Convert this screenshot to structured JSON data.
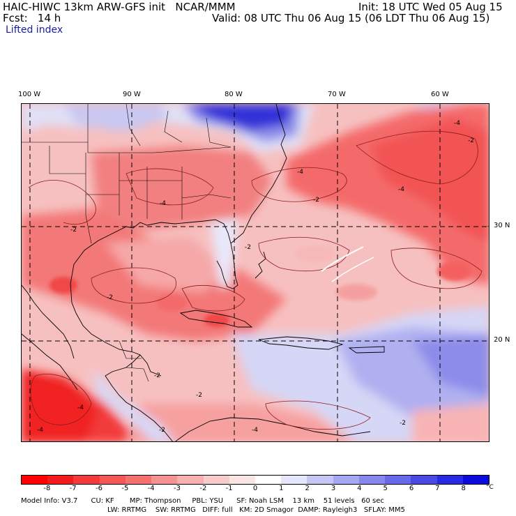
{
  "header": {
    "model_line": "HAIC-HIWC 13km ARW-GFS init   NCAR/MMM",
    "init_line": "Init: 18 UTC Wed 05 Aug 15",
    "fcst_line": "Fcst:   14 h",
    "valid_line": "Valid: 08 UTC Thu 06 Aug 15 (06 LDT Thu 06 Aug 15)",
    "field_name": "Lifted index"
  },
  "axes": {
    "lon_labels": [
      "100 W",
      "90 W",
      "80 W",
      "70 W",
      "60 W"
    ],
    "lat_labels": [
      "30 N",
      "20 N"
    ]
  },
  "contour_labels": [
    "-2",
    "-4",
    "-4",
    "-2",
    "-4",
    "-2",
    "-4",
    "-2",
    "-2",
    "-2",
    "-2",
    "-4",
    "-4",
    "-2",
    "-4",
    "-2",
    "-2"
  ],
  "colorbar": {
    "colors": [
      "#ff0000",
      "#f31c1c",
      "#f43a3a",
      "#f55757",
      "#f57070",
      "#f69292",
      "#f8afaf",
      "#f9cccc",
      "#fbe4e4",
      "#ffffff",
      "#e6e6fb",
      "#c6c6f6",
      "#a7a7f2",
      "#8787ee",
      "#6868ea",
      "#4949e6",
      "#2929e2",
      "#0a0add"
    ],
    "labels": [
      "-8",
      "-7",
      "-6",
      "-5",
      "-4",
      "-3",
      "-2",
      "-1",
      "0",
      "1",
      "2",
      "3",
      "4",
      "5",
      "6",
      "7",
      "8"
    ],
    "unit": "°C"
  },
  "footer": {
    "line1": "Model Info: V3.7      CU: KF       MP: Thompson     PBL: YSU      SF: Noah LSM    13 km    51 levels   60 sec",
    "line2": "LW: RRTMG    SW: RRTMG   DIFF: full   KM: 2D Smagor  DAMP: Rayleigh3   SFLAY: MM5"
  }
}
